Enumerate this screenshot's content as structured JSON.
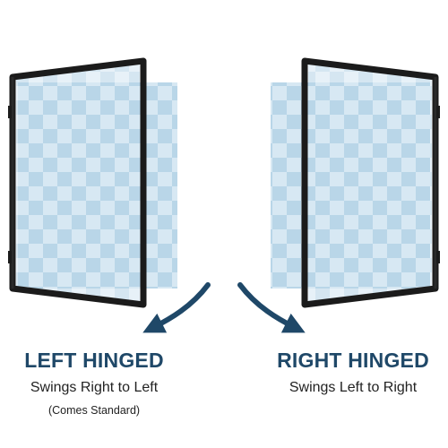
{
  "colors": {
    "frame": "#1b1b1b",
    "check_light": "#d7e8f3",
    "check_dark": "#b9d6e8",
    "arrow": "#1f4868",
    "title": "#1f4868"
  },
  "left_option": {
    "title": "LEFT HINGED",
    "subtitle": "Swings Right to Left",
    "note": "(Comes Standard)"
  },
  "right_option": {
    "title": "RIGHT HINGED",
    "subtitle": "Swings Left to Right"
  },
  "icons": [
    "curved-arrow-left-icon",
    "curved-arrow-right-icon"
  ]
}
